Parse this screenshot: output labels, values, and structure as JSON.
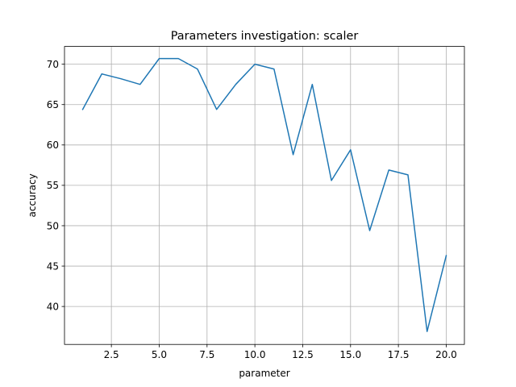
{
  "chart_data": {
    "type": "line",
    "title": "Parameters investigation: scaler",
    "xlabel": "parameter",
    "ylabel": "accuracy",
    "xlim": [
      0.05,
      20.95
    ],
    "ylim": [
      35.3,
      72.2
    ],
    "xticks": [
      2.5,
      5.0,
      7.5,
      10.0,
      12.5,
      15.0,
      17.5,
      20.0
    ],
    "xtick_labels": [
      "2.5",
      "5.0",
      "7.5",
      "10.0",
      "12.5",
      "15.0",
      "17.5",
      "20.0"
    ],
    "yticks": [
      40,
      45,
      50,
      55,
      60,
      65,
      70
    ],
    "ytick_labels": [
      "40",
      "45",
      "50",
      "55",
      "60",
      "65",
      "70"
    ],
    "grid": true,
    "series_color": "#1f77b4",
    "x": [
      1,
      2,
      3,
      4,
      5,
      6,
      7,
      8,
      9,
      10,
      11,
      12,
      13,
      14,
      15,
      16,
      17,
      18,
      19,
      20
    ],
    "y": [
      64.4,
      68.8,
      68.2,
      67.5,
      70.7,
      70.7,
      69.4,
      64.4,
      67.5,
      70.0,
      69.4,
      58.8,
      67.5,
      55.6,
      59.4,
      49.4,
      56.9,
      56.3,
      36.9,
      46.3
    ]
  }
}
